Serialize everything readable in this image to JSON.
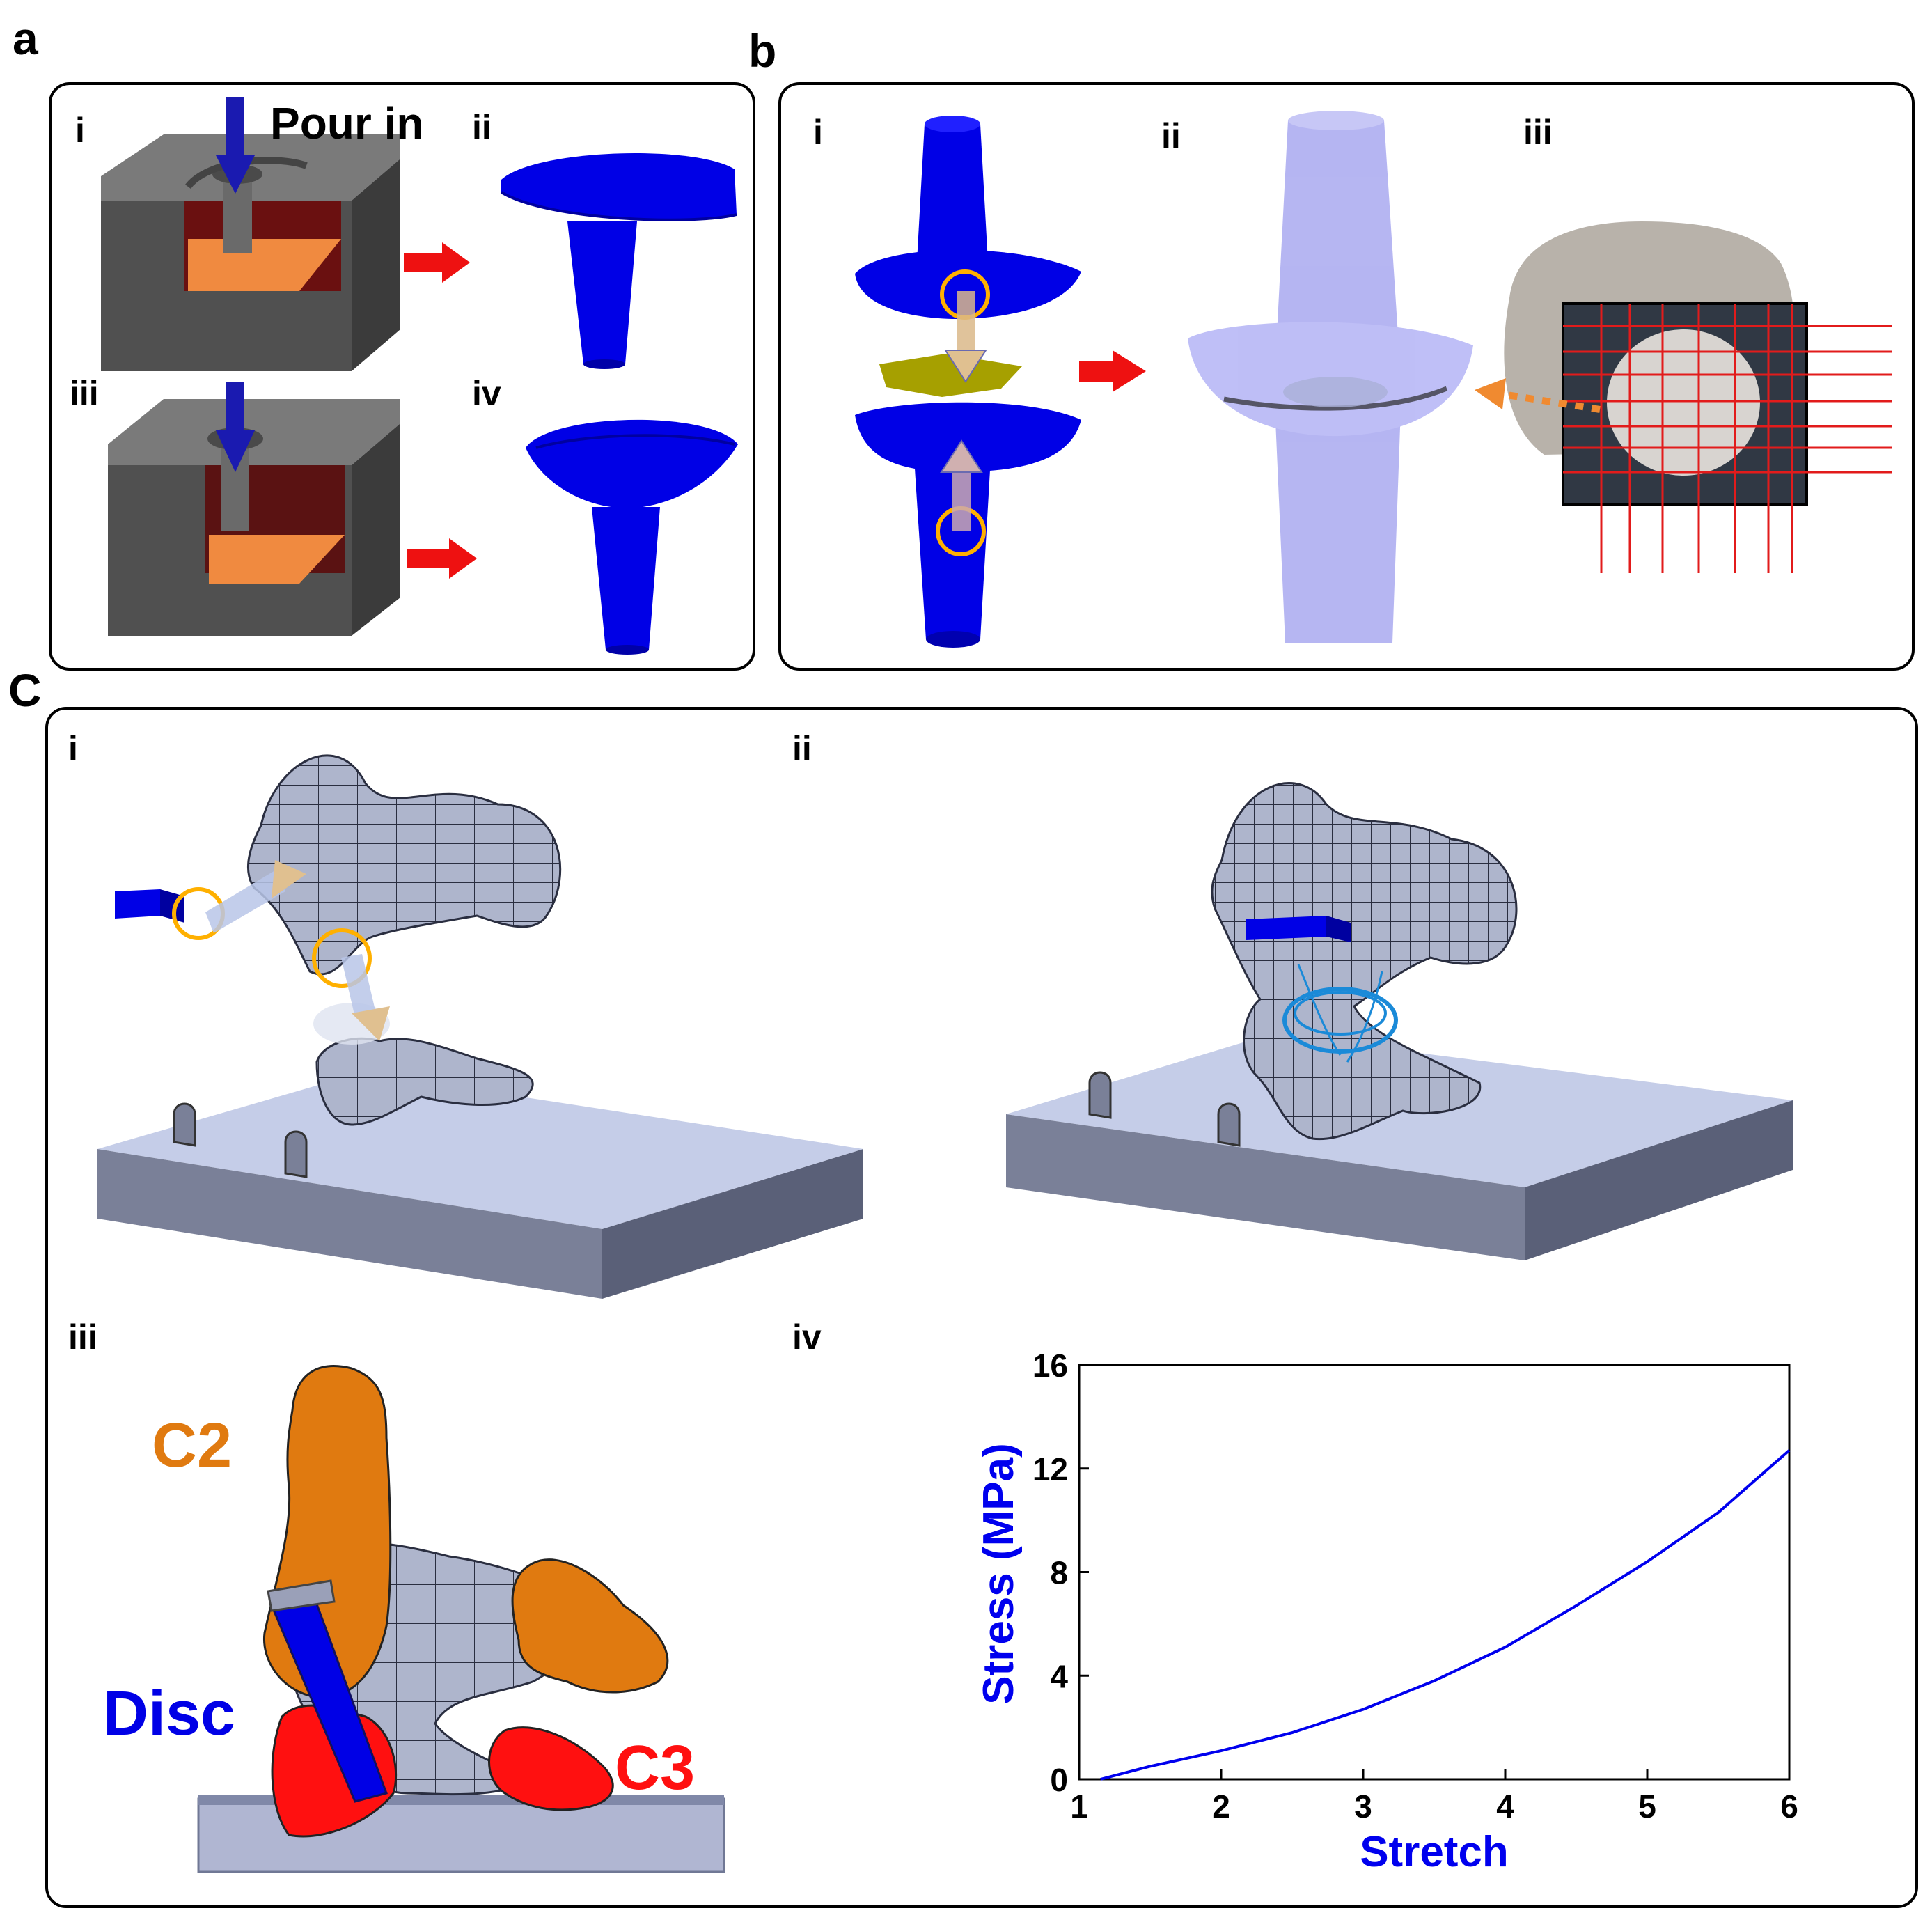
{
  "panels": {
    "a": {
      "letter": "a",
      "sub": [
        "i",
        "ii",
        "iii",
        "iv"
      ],
      "pour_label": "Pour in"
    },
    "b": {
      "letter": "b",
      "sub": [
        "i",
        "ii",
        "iii"
      ]
    },
    "c": {
      "letter": "C",
      "sub": [
        "i",
        "ii",
        "iii",
        "iv"
      ],
      "labels": {
        "c2": "C2",
        "disc": "Disc",
        "c3": "C3"
      }
    }
  },
  "colors": {
    "mold_gray": "#555555",
    "mold_dark": "#3a3a3a",
    "cavity_red": "#8a1a1a",
    "floor_orange": "#f08a40",
    "disc_blue": "#0000e6",
    "arrow_red": "#ee1111",
    "plate": "#c5cde8",
    "mesh": "#a9b0c8",
    "c2_orange": "#e07a10",
    "c3_red": "#ff1010",
    "curve_blue": "#0000ee"
  },
  "chart_data": {
    "type": "line",
    "xlabel": "Stretch",
    "ylabel": "Stress (MPa)",
    "xlim": [
      1,
      6
    ],
    "ylim": [
      0,
      16
    ],
    "xticks": [
      "1",
      "2",
      "3",
      "4",
      "5",
      "6"
    ],
    "yticks": [
      "0",
      "4",
      "8",
      "12",
      "16"
    ],
    "series": [
      {
        "x": [
          1.15,
          1.5,
          2.0,
          2.5,
          3.0,
          3.5,
          4.0,
          4.5,
          5.0,
          5.5,
          6.0
        ],
        "y": [
          0.0,
          0.5,
          1.1,
          1.8,
          2.7,
          3.8,
          5.1,
          6.7,
          8.4,
          10.3,
          12.7
        ]
      }
    ],
    "grid": false
  }
}
